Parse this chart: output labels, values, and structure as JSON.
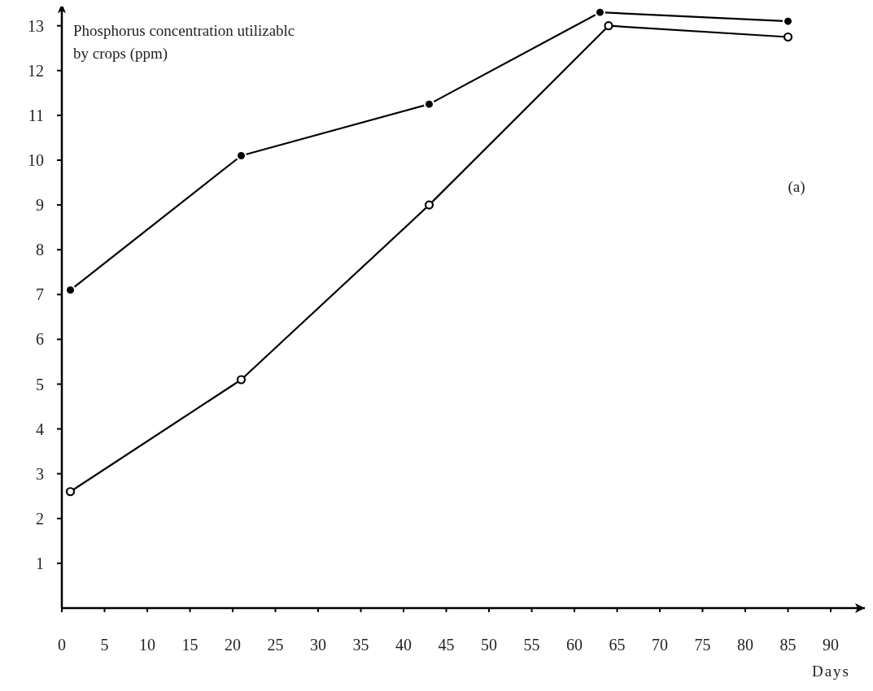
{
  "chart_data": {
    "type": "line",
    "ylabel": "Phosphorus concentration utilizablc\nby crops (ppm)",
    "xlabel": "Days",
    "annotations": [
      "(a)"
    ],
    "xlim": [
      0,
      94
    ],
    "xticks": [
      0,
      5,
      10,
      15,
      20,
      25,
      30,
      35,
      40,
      45,
      50,
      55,
      60,
      65,
      70,
      75,
      80,
      85,
      90
    ],
    "ylim": [
      0,
      13.5
    ],
    "yticks": [
      1,
      2,
      3,
      4,
      5,
      6,
      7,
      8,
      9,
      10,
      11,
      12,
      13
    ],
    "marker": "circle",
    "grid": false,
    "series": [
      {
        "color": "#000000",
        "x": [
          1,
          21,
          43,
          63,
          85
        ],
        "values": [
          7.1,
          10.1,
          11.25,
          13.3,
          13.1
        ]
      },
      {
        "color": "#000000",
        "x": [
          1,
          21,
          43,
          64,
          85
        ],
        "values": [
          2.6,
          5.1,
          9.0,
          13.0,
          12.75
        ]
      }
    ]
  }
}
